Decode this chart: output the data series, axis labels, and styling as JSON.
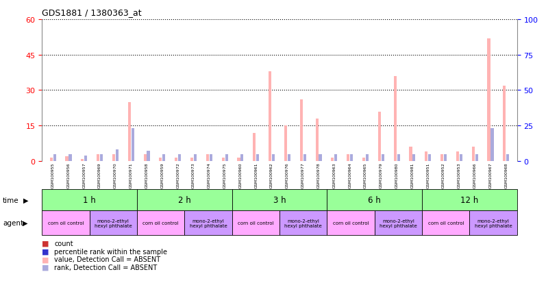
{
  "title": "GDS1881 / 1380363_at",
  "samples": [
    "GSM100955",
    "GSM100956",
    "GSM100957",
    "GSM100969",
    "GSM100970",
    "GSM100971",
    "GSM100958",
    "GSM100959",
    "GSM100972",
    "GSM100973",
    "GSM100974",
    "GSM100975",
    "GSM100960",
    "GSM100961",
    "GSM100962",
    "GSM100976",
    "GSM100977",
    "GSM100978",
    "GSM100963",
    "GSM100964",
    "GSM100965",
    "GSM100979",
    "GSM100980",
    "GSM100981",
    "GSM100951",
    "GSM100952",
    "GSM100953",
    "GSM100966",
    "GSM100967",
    "GSM100968"
  ],
  "count_values": [
    1.5,
    2,
    1,
    3,
    3,
    25,
    3,
    1.5,
    1.5,
    1.5,
    3,
    1.5,
    1.5,
    12,
    38,
    15,
    26,
    18,
    1.5,
    3,
    1.5,
    21,
    36,
    6,
    4,
    3,
    4,
    6,
    52,
    32
  ],
  "rank_values": [
    5,
    5,
    4,
    5,
    8,
    23,
    7,
    5,
    5,
    5,
    5,
    5,
    5,
    5,
    5,
    5,
    5,
    5,
    5,
    5,
    5,
    5,
    5,
    5,
    5,
    5,
    5,
    5,
    23,
    5
  ],
  "all_absent_count": true,
  "all_absent_rank": true,
  "time_groups": [
    {
      "label": "1 h",
      "start": 0,
      "end": 6
    },
    {
      "label": "2 h",
      "start": 6,
      "end": 12
    },
    {
      "label": "3 h",
      "start": 12,
      "end": 18
    },
    {
      "label": "6 h",
      "start": 18,
      "end": 24
    },
    {
      "label": "12 h",
      "start": 24,
      "end": 30
    }
  ],
  "agent_groups": [
    {
      "label": "corn oil control",
      "start": 0,
      "end": 3
    },
    {
      "label": "mono-2-ethyl\nhexyl phthalate",
      "start": 3,
      "end": 6
    },
    {
      "label": "corn oil control",
      "start": 6,
      "end": 9
    },
    {
      "label": "mono-2-ethyl\nhexyl phthalate",
      "start": 9,
      "end": 12
    },
    {
      "label": "corn oil control",
      "start": 12,
      "end": 15
    },
    {
      "label": "mono-2-ethyl\nhexyl phthalate",
      "start": 15,
      "end": 18
    },
    {
      "label": "corn oil control",
      "start": 18,
      "end": 21
    },
    {
      "label": "mono-2-ethyl\nhexyl phthalate",
      "start": 21,
      "end": 24
    },
    {
      "label": "corn oil control",
      "start": 24,
      "end": 27
    },
    {
      "label": "mono-2-ethyl\nhexyl phthalate",
      "start": 27,
      "end": 30
    }
  ],
  "ylim_left": [
    0,
    60
  ],
  "ylim_right": [
    0,
    100
  ],
  "yticks_left": [
    0,
    15,
    30,
    45,
    60
  ],
  "yticks_right": [
    0,
    25,
    50,
    75,
    100
  ],
  "count_color": "#cc3333",
  "rank_color": "#3333cc",
  "count_absent_color": "#ffb3b3",
  "rank_absent_color": "#aaaadd",
  "time_color": "#99ff99",
  "agent_color_corn": "#ffaaff",
  "agent_color_mono": "#cc99ff",
  "sample_bg_color": "#cccccc",
  "legend_items": [
    {
      "color": "#cc3333",
      "label": "count"
    },
    {
      "color": "#3333cc",
      "label": "percentile rank within the sample"
    },
    {
      "color": "#ffb3b3",
      "label": "value, Detection Call = ABSENT"
    },
    {
      "color": "#aaaadd",
      "label": "rank, Detection Call = ABSENT"
    }
  ]
}
